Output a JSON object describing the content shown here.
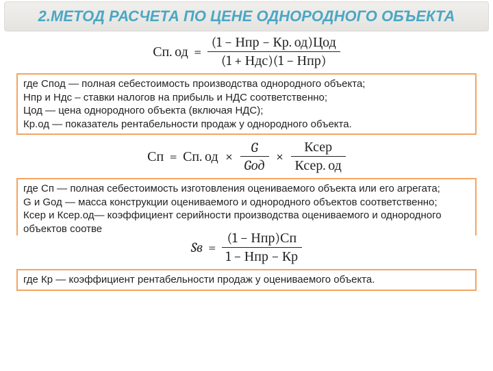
{
  "title": "2.МЕТОД РАСЧЕТА ПО ЦЕНЕ ОДНОРОДНОГО ОБЪЕКТА",
  "formula1": {
    "lhs": "Сп. од",
    "num": "(1 − Нпр − Кр. од)Цод",
    "den": "(1 + Ндс)(1 − Нпр)"
  },
  "box1": {
    "l1": "где Спод — полная себестоимость производства однородного объекта;",
    "l2": "Нпр и Ндс – ставки налогов на прибыль и НДС соответственно;",
    "l3": "Цод — цена однородного объекта (включая НДС);",
    "l4": "Кр.од — показатель рентабельности продаж у однородного объекта."
  },
  "formula2": {
    "lhs": "Сп",
    "a": "Сп. од",
    "f1num": "G",
    "f1den": "Gод",
    "f2num": "Ксер",
    "f2den": "Ксер. од"
  },
  "box2": {
    "l1": "где Сп — полная себестоимость изготовления оцениваемого объекта или его агрегата;",
    "l2": "G и Gод — масса конструкции оцениваемого и однородного объектов соответственно;",
    "l3": "Ксер и Ксер.од— коэффициент серийности производства оцениваемого и однородного объектов соотве"
  },
  "formula3": {
    "lhs": "Sв",
    "num": "(1 − Нпр)Сп",
    "den": "1 − Нпр − Кр"
  },
  "box3": {
    "l1": "где Кр — коэффициент рентабельности продаж у оцениваемого объекта."
  }
}
